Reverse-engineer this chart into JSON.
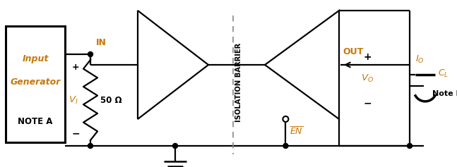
{
  "bg_color": "#ffffff",
  "line_color": "#000000",
  "text_color": "#000000",
  "orange_color": "#c8780a",
  "fig_width": 6.47,
  "fig_height": 2.37,
  "dpi": 100,
  "input_box_label1": "Input",
  "input_box_label2": "Generator",
  "input_box_label3": "NOTE A",
  "fifty_ohm_label": "50 Ω",
  "IN_label": "IN",
  "OUT_label": "OUT",
  "barrier_label": "ISOLATION BARRIER",
  "NoteB_label": "Note B"
}
